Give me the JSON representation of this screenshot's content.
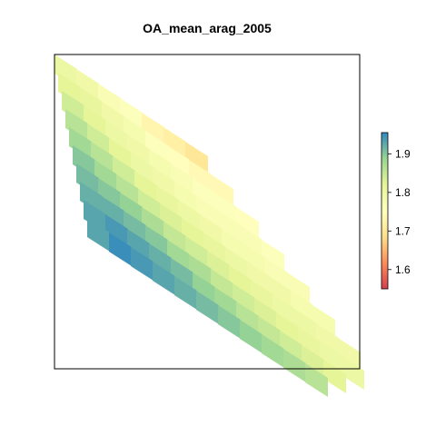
{
  "chart_data": {
    "type": "heatmap",
    "title": "OA_mean_arag_2005",
    "xlabel": "",
    "ylabel": "",
    "axis_ticks_shown": false,
    "frame": true,
    "legend": {
      "position": "right",
      "type": "colorbar",
      "range": [
        1.55,
        1.955
      ],
      "ticks": [
        1.6,
        1.7,
        1.8,
        1.9
      ],
      "tick_labels": [
        "1.6",
        "1.7",
        "1.8",
        "1.9"
      ],
      "palette": [
        "#d53e4f",
        "#fc8d59",
        "#fee08b",
        "#ffffbf",
        "#e6f598",
        "#99d594",
        "#3288bd"
      ]
    },
    "value_range": [
      1.55,
      1.955
    ],
    "description_rows": [
      {
        "band": 1,
        "values": [
          1.8,
          1.79,
          1.77,
          1.76,
          1.73,
          1.72,
          1.7
        ]
      },
      {
        "band": 2,
        "values": [
          1.82,
          1.81,
          1.79,
          1.78,
          1.76,
          1.75,
          1.74,
          1.74
        ]
      },
      {
        "band": 3,
        "values": [
          1.84,
          1.82,
          1.8,
          1.79,
          1.78,
          1.77,
          1.76,
          1.76,
          1.75
        ]
      },
      {
        "band": 4,
        "values": [
          1.86,
          1.84,
          1.82,
          1.8,
          1.79,
          1.78,
          1.77,
          1.77,
          1.77,
          1.76
        ]
      },
      {
        "band": 5,
        "values": [
          1.88,
          1.86,
          1.84,
          1.82,
          1.81,
          1.8,
          1.79,
          1.78,
          1.78,
          1.77,
          1.77
        ]
      },
      {
        "band": 6,
        "values": [
          1.9,
          1.88,
          1.86,
          1.84,
          1.83,
          1.82,
          1.81,
          1.8,
          1.79,
          1.79,
          1.78,
          1.78
        ]
      },
      {
        "band": 7,
        "values": [
          1.91,
          1.9,
          1.89,
          1.87,
          1.85,
          1.84,
          1.83,
          1.82,
          1.81,
          1.8,
          1.8,
          1.79,
          1.79
        ]
      },
      {
        "band": 8,
        "values": [
          1.92,
          1.92,
          1.91,
          1.9,
          1.88,
          1.87,
          1.85,
          1.84,
          1.83,
          1.82,
          1.81,
          1.8,
          1.8
        ]
      },
      {
        "band": 9,
        "values": [
          1.93,
          1.94,
          1.93,
          1.92,
          1.91,
          1.89,
          1.88,
          1.86,
          1.85,
          1.84,
          1.83,
          1.82
        ]
      },
      {
        "band": 10,
        "values": [
          1.93,
          1.95,
          1.94,
          1.93,
          1.92,
          1.91,
          1.9,
          1.89,
          1.88,
          1.87,
          1.86
        ]
      }
    ]
  }
}
